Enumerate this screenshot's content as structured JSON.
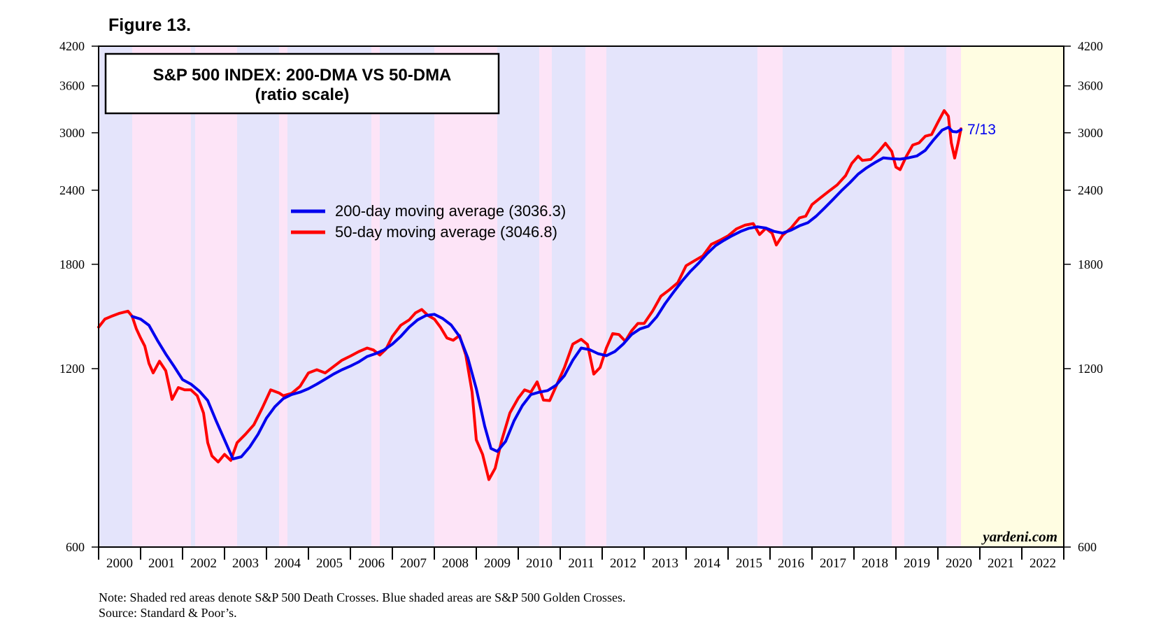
{
  "figure_label": "Figure 13.",
  "notes": {
    "note": "Note: Shaded red areas denote S&P 500 Death Crosses.  Blue shaded areas are S&P 500 Golden Crosses.",
    "source": "Source: Standard & Poor’s."
  },
  "colors": {
    "ma200": "#0000ee",
    "ma50": "#ff0000",
    "golden_shade": "#e4e4fb",
    "death_shade": "#fde4f7",
    "forecast_shade": "#fffde2"
  },
  "chart_data": {
    "type": "line",
    "title": "S&P 500 INDEX: 200-DMA VS 50-DMA",
    "subtitle": "(ratio scale)",
    "scale": "log",
    "ylim": [
      600,
      4200
    ],
    "yticks": [
      600,
      1200,
      1800,
      2400,
      3000,
      3600,
      4200
    ],
    "ytick_labels": [
      "600",
      "1200",
      "1800",
      "2400",
      "3000",
      "3600",
      "4200"
    ],
    "xlim": [
      2000.0,
      2023.0
    ],
    "xtick_labels": [
      "2000",
      "2001",
      "2002",
      "2003",
      "2004",
      "2005",
      "2006",
      "2007",
      "2008",
      "2009",
      "2010",
      "2011",
      "2012",
      "2013",
      "2014",
      "2015",
      "2016",
      "2017",
      "2018",
      "2019",
      "2020",
      "2021",
      "2022"
    ],
    "end_label": "7/13",
    "watermark": "yardeni.com",
    "legend_position": "upper-left-center",
    "shaded_regions": {
      "golden": [
        [
          2000.0,
          2000.8
        ],
        [
          2002.2,
          2002.3
        ],
        [
          2003.3,
          2004.3
        ],
        [
          2004.5,
          2006.5
        ],
        [
          2006.7,
          2008.0
        ],
        [
          2009.5,
          2010.5
        ],
        [
          2010.8,
          2011.6
        ],
        [
          2012.1,
          2015.7
        ],
        [
          2016.3,
          2018.9
        ],
        [
          2019.2,
          2020.2
        ]
      ],
      "death": [
        [
          2000.8,
          2002.2
        ],
        [
          2002.3,
          2003.3
        ],
        [
          2004.3,
          2004.5
        ],
        [
          2006.5,
          2006.7
        ],
        [
          2008.0,
          2009.5
        ],
        [
          2010.5,
          2010.8
        ],
        [
          2011.6,
          2012.1
        ],
        [
          2015.7,
          2016.0
        ],
        [
          2016.0,
          2016.3
        ],
        [
          2018.9,
          2019.2
        ],
        [
          2020.2,
          2020.55
        ]
      ],
      "forecast": [
        [
          2020.55,
          2023.0
        ]
      ]
    },
    "series": [
      {
        "name": "200-day moving average (3036.3)",
        "color": "#0000ee",
        "points": [
          [
            2000.8,
            1470
          ],
          [
            2001.0,
            1455
          ],
          [
            2001.2,
            1420
          ],
          [
            2001.4,
            1340
          ],
          [
            2001.6,
            1270
          ],
          [
            2001.8,
            1210
          ],
          [
            2002.0,
            1150
          ],
          [
            2002.2,
            1130
          ],
          [
            2002.4,
            1100
          ],
          [
            2002.6,
            1060
          ],
          [
            2002.8,
            980
          ],
          [
            2003.0,
            910
          ],
          [
            2003.2,
            845
          ],
          [
            2003.4,
            852
          ],
          [
            2003.6,
            885
          ],
          [
            2003.8,
            930
          ],
          [
            2004.0,
            990
          ],
          [
            2004.2,
            1035
          ],
          [
            2004.4,
            1068
          ],
          [
            2004.6,
            1085
          ],
          [
            2004.8,
            1095
          ],
          [
            2005.0,
            1110
          ],
          [
            2005.2,
            1130
          ],
          [
            2005.4,
            1152
          ],
          [
            2005.6,
            1175
          ],
          [
            2005.8,
            1195
          ],
          [
            2006.0,
            1212
          ],
          [
            2006.2,
            1232
          ],
          [
            2006.4,
            1258
          ],
          [
            2006.6,
            1272
          ],
          [
            2006.8,
            1290
          ],
          [
            2007.0,
            1320
          ],
          [
            2007.2,
            1360
          ],
          [
            2007.4,
            1410
          ],
          [
            2007.6,
            1450
          ],
          [
            2007.8,
            1475
          ],
          [
            2008.0,
            1482
          ],
          [
            2008.2,
            1458
          ],
          [
            2008.4,
            1422
          ],
          [
            2008.6,
            1360
          ],
          [
            2008.8,
            1250
          ],
          [
            2009.0,
            1110
          ],
          [
            2009.2,
            960
          ],
          [
            2009.35,
            880
          ],
          [
            2009.5,
            870
          ],
          [
            2009.7,
            905
          ],
          [
            2009.9,
            980
          ],
          [
            2010.1,
            1040
          ],
          [
            2010.3,
            1085
          ],
          [
            2010.5,
            1095
          ],
          [
            2010.7,
            1102
          ],
          [
            2010.9,
            1125
          ],
          [
            2011.1,
            1168
          ],
          [
            2011.3,
            1240
          ],
          [
            2011.5,
            1300
          ],
          [
            2011.7,
            1292
          ],
          [
            2011.9,
            1272
          ],
          [
            2012.1,
            1262
          ],
          [
            2012.3,
            1282
          ],
          [
            2012.5,
            1320
          ],
          [
            2012.7,
            1370
          ],
          [
            2012.9,
            1400
          ],
          [
            2013.1,
            1415
          ],
          [
            2013.3,
            1468
          ],
          [
            2013.5,
            1545
          ],
          [
            2013.7,
            1615
          ],
          [
            2013.9,
            1685
          ],
          [
            2014.1,
            1750
          ],
          [
            2014.3,
            1808
          ],
          [
            2014.5,
            1875
          ],
          [
            2014.7,
            1935
          ],
          [
            2014.9,
            1975
          ],
          [
            2015.1,
            2012
          ],
          [
            2015.3,
            2045
          ],
          [
            2015.5,
            2070
          ],
          [
            2015.7,
            2082
          ],
          [
            2015.9,
            2072
          ],
          [
            2016.1,
            2045
          ],
          [
            2016.3,
            2032
          ],
          [
            2016.5,
            2055
          ],
          [
            2016.7,
            2090
          ],
          [
            2016.9,
            2115
          ],
          [
            2017.1,
            2170
          ],
          [
            2017.3,
            2240
          ],
          [
            2017.5,
            2315
          ],
          [
            2017.7,
            2395
          ],
          [
            2017.9,
            2470
          ],
          [
            2018.1,
            2555
          ],
          [
            2018.3,
            2618
          ],
          [
            2018.5,
            2672
          ],
          [
            2018.7,
            2722
          ],
          [
            2018.9,
            2712
          ],
          [
            2019.1,
            2708
          ],
          [
            2019.3,
            2722
          ],
          [
            2019.5,
            2742
          ],
          [
            2019.7,
            2802
          ],
          [
            2019.9,
            2920
          ],
          [
            2020.1,
            3030
          ],
          [
            2020.25,
            3065
          ],
          [
            2020.35,
            3015
          ],
          [
            2020.45,
            3010
          ],
          [
            2020.55,
            3036
          ]
        ]
      },
      {
        "name": "50-day moving average (3046.8)",
        "color": "#ff0000",
        "points": [
          [
            2000.0,
            1410
          ],
          [
            2000.15,
            1455
          ],
          [
            2000.3,
            1470
          ],
          [
            2000.5,
            1488
          ],
          [
            2000.7,
            1500
          ],
          [
            2000.8,
            1470
          ],
          [
            2000.9,
            1400
          ],
          [
            2001.0,
            1352
          ],
          [
            2001.1,
            1310
          ],
          [
            2001.2,
            1225
          ],
          [
            2001.3,
            1180
          ],
          [
            2001.45,
            1235
          ],
          [
            2001.6,
            1190
          ],
          [
            2001.75,
            1065
          ],
          [
            2001.9,
            1115
          ],
          [
            2002.05,
            1105
          ],
          [
            2002.2,
            1105
          ],
          [
            2002.35,
            1080
          ],
          [
            2002.5,
            1010
          ],
          [
            2002.6,
            900
          ],
          [
            2002.7,
            855
          ],
          [
            2002.85,
            835
          ],
          [
            2003.0,
            860
          ],
          [
            2003.15,
            840
          ],
          [
            2003.3,
            900
          ],
          [
            2003.5,
            930
          ],
          [
            2003.7,
            965
          ],
          [
            2003.9,
            1030
          ],
          [
            2004.1,
            1105
          ],
          [
            2004.3,
            1092
          ],
          [
            2004.4,
            1080
          ],
          [
            2004.6,
            1090
          ],
          [
            2004.8,
            1120
          ],
          [
            2005.0,
            1180
          ],
          [
            2005.2,
            1195
          ],
          [
            2005.4,
            1180
          ],
          [
            2005.6,
            1210
          ],
          [
            2005.8,
            1240
          ],
          [
            2006.0,
            1260
          ],
          [
            2006.2,
            1282
          ],
          [
            2006.4,
            1300
          ],
          [
            2006.55,
            1290
          ],
          [
            2006.7,
            1265
          ],
          [
            2006.85,
            1295
          ],
          [
            2007.0,
            1360
          ],
          [
            2007.2,
            1420
          ],
          [
            2007.4,
            1450
          ],
          [
            2007.55,
            1490
          ],
          [
            2007.7,
            1510
          ],
          [
            2007.85,
            1475
          ],
          [
            2008.0,
            1455
          ],
          [
            2008.15,
            1408
          ],
          [
            2008.3,
            1352
          ],
          [
            2008.45,
            1340
          ],
          [
            2008.6,
            1365
          ],
          [
            2008.75,
            1265
          ],
          [
            2008.9,
            1095
          ],
          [
            2009.0,
            910
          ],
          [
            2009.15,
            860
          ],
          [
            2009.3,
            780
          ],
          [
            2009.45,
            815
          ],
          [
            2009.6,
            905
          ],
          [
            2009.8,
            1010
          ],
          [
            2010.0,
            1070
          ],
          [
            2010.15,
            1105
          ],
          [
            2010.3,
            1095
          ],
          [
            2010.45,
            1140
          ],
          [
            2010.6,
            1062
          ],
          [
            2010.75,
            1060
          ],
          [
            2010.9,
            1120
          ],
          [
            2011.1,
            1205
          ],
          [
            2011.3,
            1320
          ],
          [
            2011.5,
            1345
          ],
          [
            2011.65,
            1318
          ],
          [
            2011.8,
            1175
          ],
          [
            2011.95,
            1205
          ],
          [
            2012.1,
            1300
          ],
          [
            2012.25,
            1375
          ],
          [
            2012.4,
            1370
          ],
          [
            2012.55,
            1335
          ],
          [
            2012.7,
            1390
          ],
          [
            2012.85,
            1430
          ],
          [
            2013.0,
            1430
          ],
          [
            2013.2,
            1500
          ],
          [
            2013.4,
            1590
          ],
          [
            2013.6,
            1630
          ],
          [
            2013.8,
            1675
          ],
          [
            2014.0,
            1790
          ],
          [
            2014.2,
            1825
          ],
          [
            2014.4,
            1860
          ],
          [
            2014.6,
            1945
          ],
          [
            2014.8,
            1975
          ],
          [
            2015.0,
            2010
          ],
          [
            2015.2,
            2065
          ],
          [
            2015.4,
            2095
          ],
          [
            2015.6,
            2108
          ],
          [
            2015.75,
            2020
          ],
          [
            2015.9,
            2070
          ],
          [
            2016.05,
            2030
          ],
          [
            2016.15,
            1940
          ],
          [
            2016.3,
            2015
          ],
          [
            2016.5,
            2072
          ],
          [
            2016.7,
            2155
          ],
          [
            2016.85,
            2170
          ],
          [
            2017.0,
            2270
          ],
          [
            2017.2,
            2330
          ],
          [
            2017.4,
            2390
          ],
          [
            2017.6,
            2450
          ],
          [
            2017.8,
            2540
          ],
          [
            2017.95,
            2665
          ],
          [
            2018.1,
            2740
          ],
          [
            2018.2,
            2695
          ],
          [
            2018.4,
            2705
          ],
          [
            2018.6,
            2795
          ],
          [
            2018.75,
            2880
          ],
          [
            2018.9,
            2790
          ],
          [
            2019.0,
            2625
          ],
          [
            2019.1,
            2600
          ],
          [
            2019.25,
            2740
          ],
          [
            2019.4,
            2860
          ],
          [
            2019.55,
            2885
          ],
          [
            2019.7,
            2960
          ],
          [
            2019.85,
            2980
          ],
          [
            2020.0,
            3125
          ],
          [
            2020.15,
            3270
          ],
          [
            2020.25,
            3200
          ],
          [
            2020.32,
            2885
          ],
          [
            2020.4,
            2720
          ],
          [
            2020.48,
            2880
          ],
          [
            2020.55,
            3047
          ]
        ]
      }
    ]
  }
}
